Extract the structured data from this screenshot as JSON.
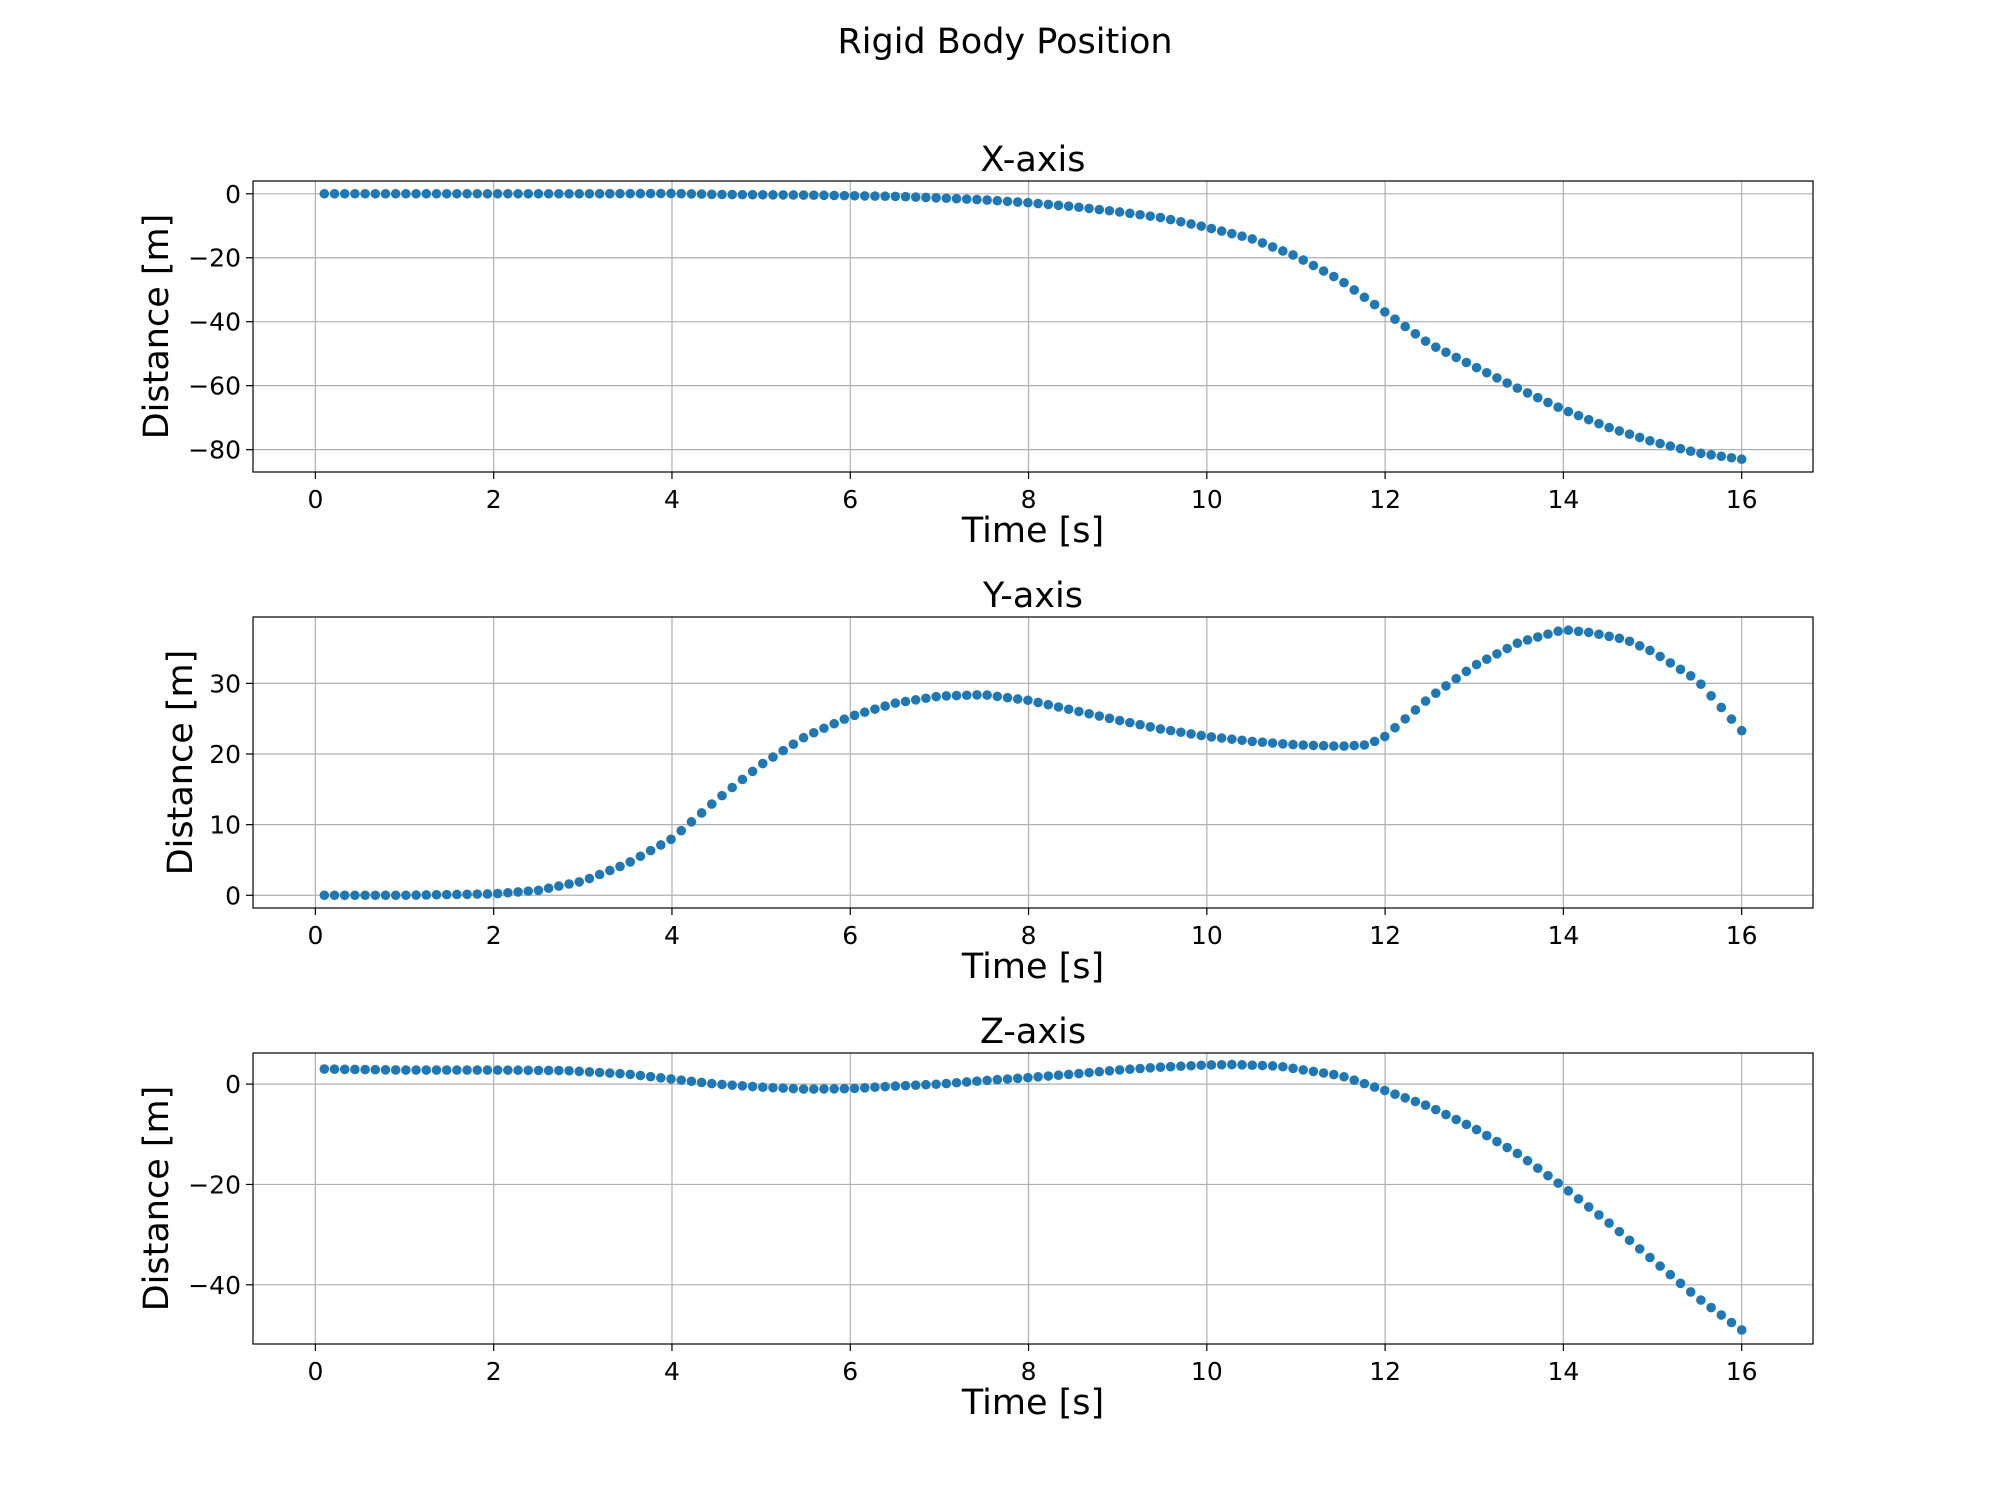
{
  "title": "Rigid Body Position",
  "colors": {
    "marker": "#1f77b4",
    "grid": "#b0b0b0",
    "axes": "#000000"
  },
  "chart_data": [
    {
      "type": "scatter",
      "title": "X-axis",
      "xlabel": "Time [s]",
      "ylabel": "Distance [m]",
      "xlim": [
        -0.7,
        16.8
      ],
      "ylim": [
        -87,
        4
      ],
      "xticks": [
        0,
        2,
        4,
        6,
        8,
        10,
        12,
        14,
        16
      ],
      "yticks": [
        0,
        -20,
        -40,
        -60,
        -80
      ],
      "grid": true,
      "x": [
        0.1,
        1,
        2,
        3,
        4,
        4.5,
        5,
        5.5,
        6,
        6.5,
        7,
        7.5,
        8,
        8.5,
        9,
        9.5,
        10,
        10.5,
        11,
        11.5,
        12,
        12.5,
        13,
        13.5,
        14,
        14.5,
        15,
        15.5,
        16
      ],
      "y": [
        0,
        0,
        0,
        0,
        0.1,
        -0.2,
        -0.3,
        -0.4,
        -0.6,
        -0.8,
        -1.3,
        -1.9,
        -2.8,
        -4,
        -5.6,
        -7.5,
        -10.5,
        -14,
        -19.5,
        -27,
        -37,
        -47,
        -54,
        -61,
        -67.5,
        -73,
        -77.5,
        -81,
        -83
      ]
    },
    {
      "type": "scatter",
      "title": "Y-axis",
      "xlabel": "Time [s]",
      "ylabel": "Distance [m]",
      "xlim": [
        -0.7,
        16.8
      ],
      "ylim": [
        -1.8,
        39.4
      ],
      "xticks": [
        0,
        2,
        4,
        6,
        8,
        10,
        12,
        14,
        16
      ],
      "yticks": [
        0,
        10,
        20,
        30
      ],
      "grid": true,
      "x": [
        0.1,
        1,
        1.5,
        2,
        2.5,
        3,
        3.5,
        4,
        4.5,
        5,
        5.5,
        6,
        6.5,
        7,
        7.5,
        8,
        8.5,
        9,
        9.5,
        10,
        10.5,
        11,
        11.5,
        11.8,
        12,
        12.5,
        13,
        13.5,
        14,
        14.3,
        14.7,
        15,
        15.5,
        16
      ],
      "y": [
        0,
        0,
        0.1,
        0.2,
        0.7,
        2,
        4.5,
        8,
        13.5,
        18.5,
        22.5,
        25.3,
        27.2,
        28.2,
        28.4,
        27.6,
        26.2,
        24.8,
        23.5,
        22.5,
        21.8,
        21.3,
        21.1,
        21.3,
        22.5,
        28,
        32.5,
        35.8,
        37.6,
        37.2,
        36.2,
        34.5,
        30.5,
        23.3
      ]
    },
    {
      "type": "scatter",
      "title": "Z-axis",
      "xlabel": "Time [s]",
      "ylabel": "Distance [m]",
      "xlim": [
        -0.7,
        16.8
      ],
      "ylim": [
        -51.8,
        6.2
      ],
      "xticks": [
        0,
        2,
        4,
        6,
        8,
        10,
        12,
        14,
        16
      ],
      "yticks": [
        0,
        -20,
        -40
      ],
      "grid": true,
      "x": [
        0.1,
        1,
        2,
        2.8,
        3.5,
        4,
        4.5,
        5,
        5.5,
        6,
        6.5,
        7,
        7.5,
        8,
        8.5,
        9,
        9.5,
        10,
        10.3,
        10.8,
        11.5,
        12,
        12.5,
        13,
        13.5,
        14,
        14.5,
        15,
        15.5,
        16
      ],
      "y": [
        3,
        2.8,
        2.8,
        2.7,
        2,
        1,
        0,
        -0.6,
        -1,
        -0.9,
        -0.4,
        0,
        0.7,
        1.3,
        2,
        2.8,
        3.4,
        3.8,
        3.9,
        3.6,
        1.7,
        -1.3,
        -4.5,
        -8.8,
        -14,
        -20.5,
        -27.5,
        -35,
        -42.5,
        -49
      ]
    }
  ]
}
